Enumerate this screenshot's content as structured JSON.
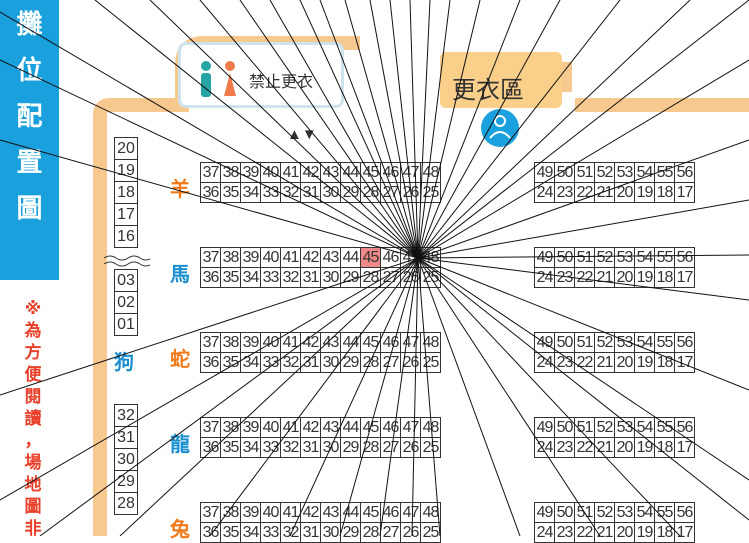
{
  "sidebar": {
    "title": [
      "攤",
      "位",
      "配",
      "置",
      "圖"
    ]
  },
  "note": [
    "※",
    "為",
    "方",
    "便",
    "閱",
    "讀",
    "，",
    "場",
    "地",
    "圖",
    "非"
  ],
  "facilities": {
    "no_changing_label": "禁止更衣",
    "changing_area_label": "更衣區",
    "arrows": "▲▼"
  },
  "rows": [
    {
      "zone": "羊",
      "zone_color": "orange",
      "top": [
        37,
        38,
        39,
        40,
        41,
        42,
        43,
        44,
        45,
        46,
        47,
        48
      ],
      "bottom": [
        36,
        35,
        34,
        33,
        32,
        31,
        30,
        29,
        28,
        27,
        26,
        25
      ],
      "right_top": [
        49,
        50,
        51,
        52,
        53,
        54,
        55,
        56
      ],
      "right_bottom": [
        24,
        23,
        22,
        21,
        20,
        19,
        18,
        17
      ]
    },
    {
      "zone": "馬",
      "zone_color": "blue",
      "top": [
        37,
        38,
        39,
        40,
        41,
        42,
        43,
        44,
        45,
        46,
        47,
        48
      ],
      "bottom": [
        36,
        35,
        34,
        33,
        32,
        31,
        30,
        29,
        28,
        27,
        26,
        25
      ],
      "right_top": [
        49,
        50,
        51,
        52,
        53,
        54,
        55,
        56
      ],
      "right_bottom": [
        24,
        23,
        22,
        21,
        20,
        19,
        18,
        17
      ],
      "highlight": 45
    },
    {
      "zone": "蛇",
      "zone_color": "orange",
      "top": [
        37,
        38,
        39,
        40,
        41,
        42,
        43,
        44,
        45,
        46,
        47,
        48
      ],
      "bottom": [
        36,
        35,
        34,
        33,
        32,
        31,
        30,
        29,
        28,
        27,
        26,
        25
      ],
      "right_top": [
        49,
        50,
        51,
        52,
        53,
        54,
        55,
        56
      ],
      "right_bottom": [
        24,
        23,
        22,
        21,
        20,
        19,
        18,
        17
      ]
    },
    {
      "zone": "龍",
      "zone_color": "blue",
      "top": [
        37,
        38,
        39,
        40,
        41,
        42,
        43,
        44,
        45,
        46,
        47,
        48
      ],
      "bottom": [
        36,
        35,
        34,
        33,
        32,
        31,
        30,
        29,
        28,
        27,
        26,
        25
      ],
      "right_top": [
        49,
        50,
        51,
        52,
        53,
        54,
        55,
        56
      ],
      "right_bottom": [
        24,
        23,
        22,
        21,
        20,
        19,
        18,
        17
      ]
    },
    {
      "zone": "兔",
      "zone_color": "orange",
      "top": [
        37,
        38,
        39,
        40,
        41,
        42,
        43,
        44,
        45,
        46,
        47,
        48
      ],
      "bottom": [
        36,
        35,
        34,
        33,
        32,
        31,
        30,
        29,
        28,
        27,
        26,
        25
      ],
      "right_top": [
        49,
        50,
        51,
        52,
        53,
        54,
        55,
        56
      ],
      "right_bottom": [
        24,
        23,
        22,
        21,
        20,
        19,
        18,
        17
      ]
    }
  ],
  "left_column_upper": [
    20,
    19,
    18,
    17,
    16
  ],
  "left_column_mid": [
    3,
    2,
    1
  ],
  "left_column_mid_labels": [
    "03",
    "02",
    "01"
  ],
  "left_zone_dog": "狗",
  "left_column_lower": [
    32,
    31,
    30,
    29,
    28
  ]
}
